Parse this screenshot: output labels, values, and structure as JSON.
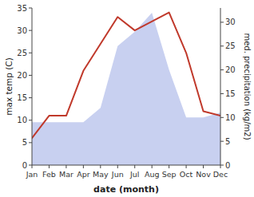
{
  "chart_data": {
    "type": "line",
    "xlabel": "date (month)",
    "ylabel": "max temp (C)",
    "y2label": "med. precipitation (kg/m2)",
    "categories": [
      "Jan",
      "Feb",
      "Mar",
      "Apr",
      "May",
      "Jun",
      "Jul",
      "Aug",
      "Sep",
      "Oct",
      "Nov",
      "Dec"
    ],
    "series": [
      {
        "type": "area",
        "axis": "y2",
        "color": "#c8d0f0",
        "values": [
          9,
          9,
          9,
          9,
          12,
          25,
          28,
          32,
          20,
          10,
          10,
          11
        ]
      },
      {
        "type": "line",
        "color": "#c0392b",
        "values": [
          6,
          11,
          11,
          21,
          27,
          33,
          30,
          32,
          34,
          25,
          12,
          11
        ]
      }
    ],
    "ylim": [
      0,
      35
    ],
    "yticks": [
      0,
      5,
      10,
      15,
      20,
      25,
      30,
      35
    ],
    "y2lim": [
      0,
      33
    ],
    "y2ticks": [
      0,
      5,
      10,
      15,
      20,
      25,
      30
    ]
  }
}
